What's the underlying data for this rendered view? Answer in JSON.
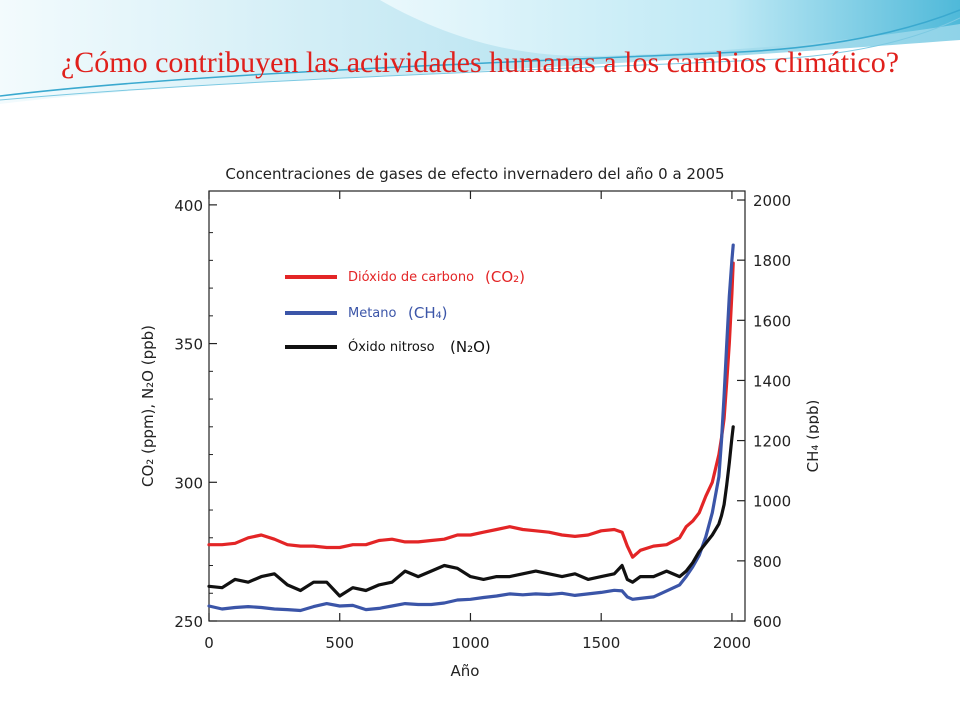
{
  "slide": {
    "title": "¿Cómo contribuyen las actividades humanas a los cambios climático?"
  },
  "colors": {
    "title": "#e0201c",
    "co2": "#e32526",
    "ch4": "#3b55a8",
    "n2o": "#111111",
    "banner_light": "#d9f2fa",
    "banner_dark": "#46b6d8"
  },
  "chart_data": {
    "type": "line",
    "title": "Concentraciones de gases de efecto invernadero del año 0 a 2005",
    "xlabel": "Año",
    "ylabel_left": "CO₂ (ppm), N₂O (ppb)",
    "ylabel_right": "CH₄ (ppb)",
    "xlim": [
      0,
      2050
    ],
    "ylim_left": [
      250,
      405
    ],
    "ylim_right": [
      600,
      2030
    ],
    "x_ticks": [
      0,
      500,
      1000,
      1500,
      2000
    ],
    "y_ticks_left": [
      250,
      300,
      350,
      400
    ],
    "y_ticks_right": [
      600,
      800,
      1000,
      1200,
      1400,
      1600,
      1800,
      2000
    ],
    "grid": false,
    "legend_position": "upper-left",
    "series": [
      {
        "name": "Dióxido de carbono",
        "formula": "(CO₂)",
        "axis": "left",
        "x": [
          0,
          50,
          100,
          150,
          200,
          250,
          300,
          350,
          400,
          450,
          500,
          550,
          600,
          650,
          700,
          750,
          800,
          850,
          900,
          950,
          1000,
          1050,
          1100,
          1150,
          1200,
          1250,
          1300,
          1350,
          1400,
          1450,
          1500,
          1550,
          1580,
          1600,
          1620,
          1650,
          1700,
          1750,
          1800,
          1825,
          1850,
          1875,
          1900,
          1925,
          1950,
          1960,
          1970,
          1980,
          1990,
          2000,
          2005
        ],
        "values": [
          277.5,
          277.5,
          278,
          280,
          281,
          279.5,
          277.5,
          277,
          277,
          276.5,
          276.5,
          277.5,
          277.5,
          279,
          279.5,
          278.5,
          278.5,
          279,
          279.5,
          281,
          281,
          282,
          283,
          284,
          283,
          282.5,
          282,
          281,
          280.5,
          281,
          282.5,
          283,
          282,
          277,
          273,
          275.5,
          277,
          277.5,
          280,
          284,
          286,
          289,
          295,
          300,
          310,
          316,
          323,
          336,
          350,
          368,
          379
        ]
      },
      {
        "name": "Metano",
        "formula": "(CH₄)",
        "axis": "right",
        "x": [
          0,
          50,
          100,
          150,
          200,
          250,
          300,
          350,
          400,
          450,
          500,
          550,
          600,
          650,
          700,
          750,
          800,
          850,
          900,
          950,
          1000,
          1050,
          1100,
          1150,
          1200,
          1250,
          1300,
          1350,
          1400,
          1450,
          1500,
          1550,
          1580,
          1600,
          1620,
          1650,
          1700,
          1750,
          1800,
          1825,
          1850,
          1875,
          1900,
          1925,
          1950,
          1960,
          1970,
          1980,
          1990,
          2000,
          2005
        ],
        "values": [
          650,
          640,
          645,
          648,
          645,
          640,
          638,
          635,
          648,
          658,
          650,
          652,
          638,
          642,
          650,
          658,
          655,
          655,
          660,
          670,
          672,
          678,
          683,
          690,
          687,
          690,
          688,
          692,
          685,
          690,
          695,
          702,
          700,
          680,
          672,
          675,
          680,
          700,
          720,
          748,
          780,
          818,
          880,
          960,
          1080,
          1200,
          1350,
          1520,
          1680,
          1800,
          1850
        ]
      },
      {
        "name": "Óxido nitroso",
        "formula": "(N₂O)",
        "axis": "left",
        "x": [
          0,
          50,
          100,
          150,
          200,
          250,
          300,
          350,
          400,
          450,
          500,
          550,
          600,
          650,
          700,
          750,
          800,
          850,
          900,
          950,
          1000,
          1050,
          1100,
          1150,
          1200,
          1250,
          1300,
          1350,
          1400,
          1450,
          1500,
          1550,
          1580,
          1600,
          1620,
          1650,
          1700,
          1750,
          1800,
          1825,
          1850,
          1875,
          1900,
          1925,
          1950,
          1960,
          1970,
          1980,
          1990,
          2000,
          2005
        ],
        "values": [
          262.5,
          262,
          265,
          264,
          266,
          267,
          263,
          261,
          264,
          264,
          259,
          262,
          261,
          263,
          264,
          268,
          266,
          268,
          270,
          269,
          266,
          265,
          266,
          266,
          267,
          268,
          267,
          266,
          267,
          265,
          266,
          267,
          270,
          265,
          264,
          266,
          266,
          268,
          266,
          268,
          271,
          275,
          278,
          281,
          285,
          288,
          292,
          299,
          307,
          316,
          320
        ]
      }
    ]
  }
}
